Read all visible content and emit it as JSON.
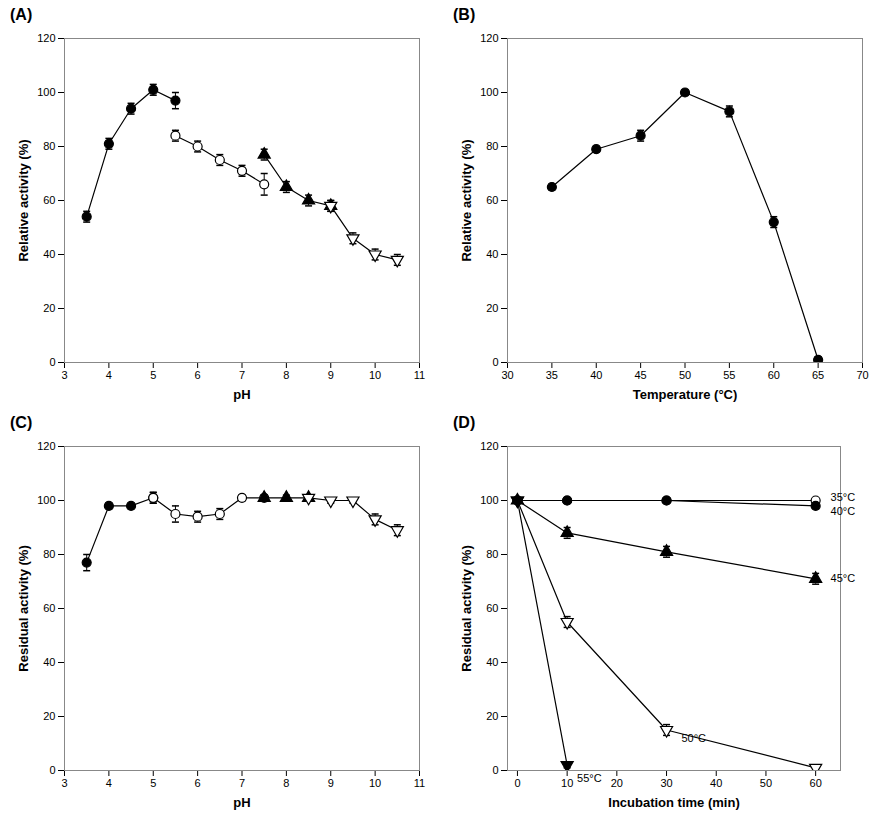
{
  "chart_data": [
    {
      "type": "line",
      "title": "(A)",
      "xlabel": "pH",
      "ylabel": "Relative activity (%)",
      "xlim": [
        3,
        11
      ],
      "xticks": [
        3,
        4,
        5,
        6,
        7,
        8,
        9,
        10,
        11
      ],
      "ylim": [
        0,
        120
      ],
      "yticks": [
        0,
        20,
        40,
        60,
        80,
        100,
        120
      ],
      "grid": false,
      "series": [
        {
          "color": "black",
          "marker": "circle",
          "x": [
            3.5,
            4.0,
            4.5,
            5.0,
            5.5
          ],
          "values": [
            54,
            81,
            94,
            101,
            97
          ],
          "errors": [
            2,
            2,
            2,
            2,
            3
          ]
        },
        {
          "color": "black",
          "marker": "circle-open",
          "x": [
            5.5,
            6.0,
            6.5,
            7.0,
            7.5
          ],
          "values": [
            84,
            80,
            75,
            71,
            66
          ],
          "errors": [
            2,
            2,
            2,
            2,
            4
          ]
        },
        {
          "color": "black",
          "marker": "triangle-up",
          "x": [
            7.5,
            8.0,
            8.5,
            9.0
          ],
          "values": [
            77,
            65,
            60,
            58
          ],
          "errors": [
            2,
            2,
            2,
            2
          ]
        },
        {
          "color": "black",
          "marker": "triangle-down-open",
          "x": [
            9.0,
            9.5,
            10.0,
            10.5
          ],
          "values": [
            58,
            46,
            40,
            38
          ],
          "errors": [
            2,
            2,
            2,
            2
          ]
        }
      ]
    },
    {
      "type": "line",
      "title": "(B)",
      "xlabel": "Temperature (°C)",
      "ylabel": "Relative activity (%)",
      "xlim": [
        30,
        70
      ],
      "xticks": [
        30,
        35,
        40,
        45,
        50,
        55,
        60,
        65,
        70
      ],
      "ylim": [
        0,
        120
      ],
      "yticks": [
        0,
        20,
        40,
        60,
        80,
        100,
        120
      ],
      "grid": false,
      "series": [
        {
          "color": "black",
          "marker": "circle",
          "x": [
            35,
            40,
            45,
            50,
            55,
            60,
            65
          ],
          "values": [
            65,
            79,
            84,
            100,
            93,
            52,
            1
          ],
          "errors": [
            1,
            1,
            2,
            1,
            2,
            2,
            1
          ]
        }
      ]
    },
    {
      "type": "line",
      "title": "(C)",
      "xlabel": "pH",
      "ylabel": "Residual activity (%)",
      "xlim": [
        3,
        11
      ],
      "xticks": [
        3,
        4,
        5,
        6,
        7,
        8,
        9,
        10,
        11
      ],
      "ylim": [
        0,
        120
      ],
      "yticks": [
        0,
        20,
        40,
        60,
        80,
        100,
        120
      ],
      "grid": false,
      "series": [
        {
          "color": "black",
          "marker": "circle",
          "x": [
            3.5,
            4.0,
            4.5,
            5.0
          ],
          "values": [
            77,
            98,
            98,
            101
          ],
          "errors": [
            3,
            1,
            1,
            2
          ]
        },
        {
          "color": "black",
          "marker": "circle-open",
          "x": [
            5.0,
            5.5,
            6.0,
            6.5,
            7.0,
            7.5
          ],
          "values": [
            101,
            95,
            94,
            95,
            101,
            101
          ],
          "errors": [
            2,
            3,
            2,
            2,
            1,
            1
          ]
        },
        {
          "color": "black",
          "marker": "triangle-up",
          "x": [
            7.5,
            8.0,
            8.5
          ],
          "values": [
            101,
            101,
            101
          ],
          "errors": [
            1,
            1,
            1
          ]
        },
        {
          "color": "black",
          "marker": "triangle-down-open",
          "x": [
            8.5,
            9.0,
            9.5,
            10.0,
            10.5
          ],
          "values": [
            101,
            100,
            100,
            93,
            89
          ],
          "errors": [
            1,
            1,
            1,
            2,
            2
          ]
        }
      ]
    },
    {
      "type": "line",
      "title": "(D)",
      "xlabel": "Incubation time (min)",
      "ylabel": "Residual activity (%)",
      "xlim": [
        -2,
        65
      ],
      "xticks": [
        0,
        10,
        20,
        30,
        40,
        50,
        60
      ],
      "ylim": [
        0,
        120
      ],
      "yticks": [
        0,
        20,
        40,
        60,
        80,
        100,
        120
      ],
      "grid": false,
      "series": [
        {
          "color": "black",
          "marker": "circle-open",
          "x": [
            0,
            10,
            30,
            60
          ],
          "values": [
            100,
            100,
            100,
            100
          ],
          "errors": [
            0,
            0,
            0,
            0
          ]
        },
        {
          "color": "black",
          "marker": "circle",
          "x": [
            0,
            10,
            30,
            60
          ],
          "values": [
            100,
            100,
            100,
            98
          ],
          "errors": [
            0,
            0,
            0,
            1
          ]
        },
        {
          "color": "black",
          "marker": "triangle-up",
          "x": [
            0,
            10,
            30,
            60
          ],
          "values": [
            100,
            88,
            81,
            71
          ],
          "errors": [
            0,
            2,
            2,
            2
          ]
        },
        {
          "color": "black",
          "marker": "triangle-down-open",
          "x": [
            0,
            10,
            30,
            60
          ],
          "values": [
            100,
            55,
            15,
            1
          ],
          "errors": [
            0,
            2,
            2,
            1
          ]
        },
        {
          "color": "black",
          "marker": "triangle-down",
          "x": [
            0,
            10
          ],
          "values": [
            100,
            2
          ],
          "errors": [
            0,
            1
          ]
        }
      ],
      "annotations": [
        {
          "text": "35°C",
          "x": 62,
          "y": 101
        },
        {
          "text": "40°C",
          "x": 62,
          "y": 96
        },
        {
          "text": "45°C",
          "x": 62,
          "y": 71
        },
        {
          "text": "50°C",
          "x": 32,
          "y": 12
        },
        {
          "text": "55°C",
          "x": 11,
          "y": -3
        }
      ]
    }
  ]
}
